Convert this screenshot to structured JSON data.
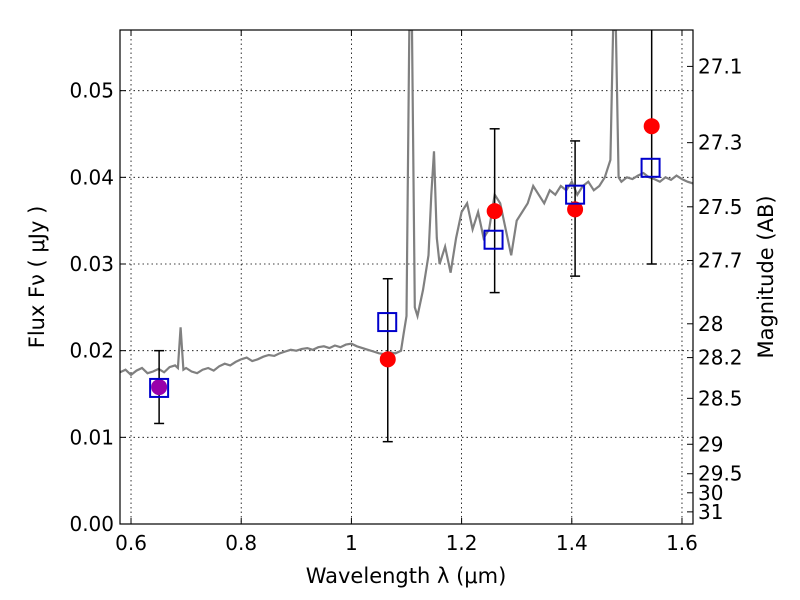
{
  "chart_data": {
    "type": "scatter",
    "xlabel": "Wavelength  λ (μm)",
    "ylabel": "Flux  Fν  ( μJy )",
    "ylabel_right": "Magnitude (AB)",
    "xlim": [
      0.58,
      1.62
    ],
    "ylim": [
      0.0,
      0.057
    ],
    "grid": true,
    "x_ticks": [
      0.6,
      0.8,
      1.0,
      1.2,
      1.4,
      1.6
    ],
    "x_tick_labels": [
      "0.6",
      "0.8",
      "1",
      "1.2",
      "1.4",
      "1.6"
    ],
    "y_ticks": [
      0.0,
      0.01,
      0.02,
      0.03,
      0.04,
      0.05
    ],
    "y_tick_labels": [
      "0.00",
      "0.01",
      "0.02",
      "0.03",
      "0.04",
      "0.05"
    ],
    "right_axis_ticks": [
      {
        "label": "27.1",
        "flux": 0.0528
      },
      {
        "label": "27.3",
        "flux": 0.044
      },
      {
        "label": "27.5",
        "flux": 0.0366
      },
      {
        "label": "27.7",
        "flux": 0.0304
      },
      {
        "label": "28",
        "flux": 0.0231
      },
      {
        "label": "28.2",
        "flux": 0.0192
      },
      {
        "label": "28.5",
        "flux": 0.0145
      },
      {
        "label": "29",
        "flux": 0.0092
      },
      {
        "label": "29.5",
        "flux": 0.0058
      },
      {
        "label": "30",
        "flux": 0.0036
      },
      {
        "label": "31",
        "flux": 0.0014
      }
    ],
    "series": [
      {
        "kind": "line",
        "color": "#808080",
        "x": [
          0.58,
          0.59,
          0.6,
          0.61,
          0.62,
          0.63,
          0.64,
          0.65,
          0.66,
          0.67,
          0.68,
          0.685,
          0.69,
          0.695,
          0.7,
          0.71,
          0.72,
          0.73,
          0.74,
          0.75,
          0.76,
          0.77,
          0.78,
          0.79,
          0.8,
          0.81,
          0.82,
          0.83,
          0.84,
          0.85,
          0.86,
          0.87,
          0.88,
          0.89,
          0.9,
          0.91,
          0.92,
          0.93,
          0.94,
          0.95,
          0.96,
          0.97,
          0.98,
          0.99,
          1.0,
          1.01,
          1.02,
          1.03,
          1.04,
          1.05,
          1.06,
          1.07,
          1.08,
          1.09,
          1.095,
          1.1,
          1.105,
          1.11,
          1.115,
          1.12,
          1.13,
          1.14,
          1.145,
          1.15,
          1.155,
          1.16,
          1.17,
          1.18,
          1.19,
          1.2,
          1.21,
          1.22,
          1.23,
          1.24,
          1.25,
          1.26,
          1.27,
          1.28,
          1.29,
          1.3,
          1.31,
          1.32,
          1.33,
          1.34,
          1.35,
          1.36,
          1.37,
          1.38,
          1.39,
          1.4,
          1.41,
          1.42,
          1.43,
          1.44,
          1.45,
          1.46,
          1.47,
          1.475,
          1.48,
          1.485,
          1.49,
          1.5,
          1.51,
          1.52,
          1.53,
          1.54,
          1.55,
          1.56,
          1.57,
          1.58,
          1.59,
          1.6,
          1.61,
          1.62
        ],
        "y": [
          0.0175,
          0.0178,
          0.0172,
          0.0177,
          0.018,
          0.0174,
          0.0176,
          0.0179,
          0.0175,
          0.0181,
          0.0183,
          0.018,
          0.0227,
          0.0178,
          0.018,
          0.0176,
          0.0174,
          0.0178,
          0.018,
          0.0177,
          0.0182,
          0.0185,
          0.0183,
          0.0187,
          0.019,
          0.0192,
          0.0188,
          0.019,
          0.0193,
          0.0195,
          0.0194,
          0.0197,
          0.0199,
          0.0201,
          0.02,
          0.0202,
          0.0203,
          0.0201,
          0.0204,
          0.0205,
          0.0203,
          0.0206,
          0.0204,
          0.0207,
          0.0208,
          0.0205,
          0.0203,
          0.0201,
          0.0199,
          0.0197,
          0.0196,
          0.0198,
          0.0197,
          0.02,
          0.022,
          0.024,
          0.057,
          0.057,
          0.025,
          0.024,
          0.027,
          0.031,
          0.038,
          0.043,
          0.033,
          0.03,
          0.032,
          0.029,
          0.033,
          0.036,
          0.037,
          0.034,
          0.036,
          0.033,
          0.034,
          0.038,
          0.037,
          0.034,
          0.031,
          0.035,
          0.036,
          0.037,
          0.039,
          0.038,
          0.037,
          0.0385,
          0.038,
          0.039,
          0.0385,
          0.0395,
          0.038,
          0.039,
          0.0395,
          0.0385,
          0.039,
          0.04,
          0.042,
          0.057,
          0.057,
          0.04,
          0.0395,
          0.04,
          0.0398,
          0.0402,
          0.0405,
          0.04,
          0.0398,
          0.0395,
          0.04,
          0.0397,
          0.0402,
          0.0398,
          0.0395,
          0.0393
        ]
      },
      {
        "kind": "open-square",
        "color": "#0000cc",
        "x": [
          0.651,
          1.065,
          1.258,
          1.406,
          1.543
        ],
        "y": [
          0.0157,
          0.0233,
          0.0328,
          0.038,
          0.0411
        ]
      },
      {
        "kind": "filled-circle",
        "color": "#ff0000",
        "x": [
          1.066,
          1.26,
          1.406,
          1.545
        ],
        "y": [
          0.019,
          0.0361,
          0.0363,
          0.0459
        ],
        "err_low": [
          0.0095,
          0.0094,
          0.0077,
          0.0159
        ],
        "err_high": [
          0.0093,
          0.0095,
          0.0079,
          0.0231
        ]
      },
      {
        "kind": "filled-circle",
        "color": "#9900aa",
        "x": [
          0.651
        ],
        "y": [
          0.0158
        ],
        "err_low": [
          0.0042
        ],
        "err_high": [
          0.0042
        ]
      }
    ]
  }
}
